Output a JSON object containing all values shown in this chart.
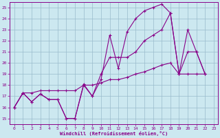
{
  "bg_color": "#cce8f0",
  "line_color": "#880088",
  "grid_color": "#99bbcc",
  "xlabel": "Windchill (Refroidissement éolien,°C)",
  "xlim": [
    -0.5,
    23.5
  ],
  "ylim": [
    14.5,
    25.5
  ],
  "yticks": [
    15,
    16,
    17,
    18,
    19,
    20,
    21,
    22,
    23,
    24,
    25
  ],
  "xticks": [
    0,
    1,
    2,
    3,
    4,
    5,
    6,
    7,
    8,
    9,
    10,
    11,
    12,
    13,
    14,
    15,
    16,
    17,
    18,
    19,
    20,
    21,
    22,
    23
  ],
  "line1_x": [
    0,
    1,
    2,
    3,
    4,
    5,
    6,
    7,
    8,
    9,
    10,
    11,
    12,
    13,
    14,
    15,
    16,
    17,
    18,
    19,
    20,
    21,
    22
  ],
  "line1_y": [
    16.0,
    17.3,
    16.5,
    17.2,
    16.7,
    16.7,
    15.0,
    15.0,
    18.0,
    17.0,
    18.5,
    22.5,
    19.5,
    22.8,
    24.0,
    24.7,
    25.0,
    25.3,
    24.5,
    19.0,
    21.0,
    21.0,
    19.0
  ],
  "line2_x": [
    0,
    1,
    2,
    3,
    4,
    5,
    6,
    7,
    8,
    9,
    10,
    11,
    12,
    13,
    14,
    15,
    16,
    17,
    18,
    19,
    20,
    21,
    22
  ],
  "line2_y": [
    16.0,
    17.3,
    16.5,
    17.2,
    16.7,
    16.7,
    15.0,
    15.0,
    18.1,
    17.0,
    19.0,
    20.5,
    20.5,
    20.5,
    21.0,
    22.0,
    22.5,
    23.0,
    24.5,
    19.0,
    23.0,
    21.0,
    19.0
  ],
  "line3_x": [
    0,
    1,
    2,
    3,
    4,
    5,
    6,
    7,
    8,
    9,
    10,
    11,
    12,
    13,
    14,
    15,
    16,
    17,
    18,
    19,
    20,
    21,
    22
  ],
  "line3_y": [
    16.0,
    17.3,
    17.3,
    17.5,
    17.5,
    17.5,
    17.5,
    17.5,
    18.0,
    18.0,
    18.2,
    18.5,
    18.5,
    18.7,
    19.0,
    19.2,
    19.5,
    19.8,
    20.0,
    19.0,
    19.0,
    19.0,
    19.0
  ]
}
